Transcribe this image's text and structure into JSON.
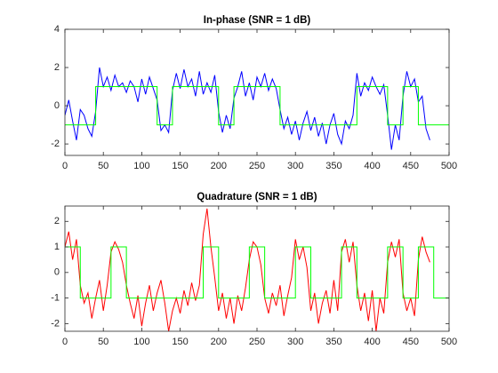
{
  "chart_data": [
    {
      "type": "line",
      "title": "In-phase (SNR = 1 dB)",
      "xlim": [
        0,
        500
      ],
      "xticks": [
        0,
        50,
        100,
        150,
        200,
        250,
        300,
        350,
        400,
        450,
        500
      ],
      "ylim": [
        -2.6,
        4
      ],
      "yticks": [
        -2,
        0,
        2,
        4
      ],
      "series": [
        {
          "color": "#0000ff",
          "x": [
            0,
            5,
            10,
            15,
            20,
            25,
            30,
            35,
            40,
            45,
            50,
            55,
            60,
            65,
            70,
            75,
            80,
            85,
            90,
            95,
            100,
            105,
            110,
            115,
            120,
            125,
            130,
            135,
            140,
            145,
            150,
            155,
            160,
            165,
            170,
            175,
            180,
            185,
            190,
            195,
            200,
            205,
            210,
            215,
            220,
            225,
            230,
            235,
            240,
            245,
            250,
            255,
            260,
            265,
            270,
            275,
            280,
            285,
            290,
            295,
            300,
            305,
            310,
            315,
            320,
            325,
            330,
            335,
            340,
            345,
            350,
            355,
            360,
            365,
            370,
            375,
            380,
            385,
            390,
            395,
            400,
            405,
            410,
            415,
            420,
            425,
            430,
            435,
            440,
            445,
            450,
            455,
            460,
            465,
            470,
            475
          ],
          "values": [
            -0.5,
            0.3,
            -0.8,
            -1.8,
            -0.2,
            -0.5,
            -1.2,
            -1.6,
            -0.3,
            2.0,
            1.0,
            1.5,
            0.8,
            1.6,
            1.0,
            1.2,
            0.7,
            1.3,
            1.0,
            0.2,
            1.4,
            0.6,
            1.5,
            0.9,
            0.3,
            -1.3,
            -1.0,
            -1.4,
            0.8,
            1.7,
            0.9,
            1.9,
            1.0,
            1.4,
            0.5,
            1.8,
            0.6,
            1.2,
            0.7,
            1.6,
            -0.3,
            -1.4,
            -0.5,
            -1.2,
            0.4,
            1.0,
            1.8,
            0.5,
            1.2,
            0.3,
            1.5,
            1.0,
            1.7,
            0.8,
            1.4,
            0.9,
            -0.2,
            -1.2,
            -0.6,
            -1.5,
            -0.8,
            -1.8,
            -0.9,
            -0.3,
            -1.3,
            -0.6,
            -1.6,
            -0.9,
            -2.0,
            -1.0,
            -0.4,
            -1.5,
            -2.0,
            -0.8,
            -1.2,
            -0.5,
            1.7,
            0.5,
            1.2,
            0.8,
            1.5,
            1.0,
            0.6,
            1.1,
            -0.5,
            -2.3,
            -1.0,
            -1.8,
            0.5,
            1.8,
            1.0,
            1.4,
            0.2,
            0.5,
            -1.2,
            -1.8
          ]
        },
        {
          "color": "#00ff00",
          "x": [
            0,
            40,
            40,
            120,
            120,
            140,
            140,
            200,
            200,
            220,
            220,
            280,
            280,
            380,
            380,
            420,
            420,
            440,
            440,
            460,
            460,
            500
          ],
          "values": [
            -1,
            -1,
            1,
            1,
            -1,
            -1,
            1,
            1,
            -1,
            -1,
            1,
            1,
            -1,
            -1,
            1,
            1,
            -1,
            -1,
            1,
            1,
            -1,
            -1
          ]
        }
      ]
    },
    {
      "type": "line",
      "title": "Quadrature (SNR = 1 dB)",
      "xlim": [
        0,
        500
      ],
      "xticks": [
        0,
        50,
        100,
        150,
        200,
        250,
        300,
        350,
        400,
        450,
        500
      ],
      "ylim": [
        -2.3,
        2.6
      ],
      "yticks": [
        -2,
        -1,
        0,
        1,
        2
      ],
      "series": [
        {
          "color": "#ff0000",
          "x": [
            0,
            5,
            10,
            15,
            20,
            25,
            30,
            35,
            40,
            45,
            50,
            55,
            60,
            65,
            70,
            75,
            80,
            85,
            90,
            95,
            100,
            105,
            110,
            115,
            120,
            125,
            130,
            135,
            140,
            145,
            150,
            155,
            160,
            165,
            170,
            175,
            180,
            185,
            190,
            195,
            200,
            205,
            210,
            215,
            220,
            225,
            230,
            235,
            240,
            245,
            250,
            255,
            260,
            265,
            270,
            275,
            280,
            285,
            290,
            295,
            300,
            305,
            310,
            315,
            320,
            325,
            330,
            335,
            340,
            345,
            350,
            355,
            360,
            365,
            370,
            375,
            380,
            385,
            390,
            395,
            400,
            405,
            410,
            415,
            420,
            425,
            430,
            435,
            440,
            445,
            450,
            455,
            460,
            465,
            470,
            475
          ],
          "values": [
            1.0,
            1.6,
            0.5,
            1.3,
            -0.5,
            -1.2,
            -0.8,
            -1.8,
            -1.0,
            -0.3,
            -1.5,
            -0.5,
            0.8,
            1.2,
            0.9,
            0.4,
            -0.5,
            -1.2,
            -1.8,
            -0.9,
            -2.1,
            -1.2,
            -0.5,
            -1.5,
            -0.8,
            -0.3,
            -1.2,
            -2.3,
            -1.5,
            -1.0,
            -1.6,
            -0.7,
            -1.3,
            -0.4,
            -1.1,
            -0.5,
            1.5,
            2.5,
            1.0,
            -0.2,
            -1.5,
            -0.8,
            -1.8,
            -1.0,
            -2.0,
            -0.9,
            -1.5,
            -0.6,
            0.5,
            1.2,
            1.0,
            0.3,
            -1.0,
            -1.6,
            -0.8,
            -1.3,
            -0.5,
            -1.7,
            -0.9,
            -0.2,
            1.3,
            0.5,
            1.0,
            0.2,
            -1.5,
            -0.8,
            -2.0,
            -1.2,
            -0.7,
            -1.6,
            -0.3,
            -1.5,
            0.8,
            1.3,
            0.4,
            1.2,
            -0.5,
            -1.5,
            -0.8,
            -1.9,
            -0.7,
            -2.3,
            -1.0,
            -1.6,
            0.4,
            1.2,
            0.6,
            1.3,
            -0.8,
            -1.5,
            -1.0,
            -1.7,
            0.5,
            1.4,
            0.8,
            0.4
          ]
        },
        {
          "color": "#00ff00",
          "x": [
            0,
            20,
            20,
            60,
            60,
            80,
            80,
            180,
            180,
            200,
            200,
            240,
            240,
            260,
            260,
            300,
            300,
            320,
            320,
            360,
            360,
            380,
            380,
            420,
            420,
            440,
            440,
            460,
            460,
            480,
            480,
            500
          ],
          "values": [
            1,
            1,
            -1,
            -1,
            1,
            1,
            -1,
            -1,
            1,
            1,
            -1,
            -1,
            1,
            1,
            -1,
            -1,
            1,
            1,
            -1,
            -1,
            1,
            1,
            -1,
            -1,
            1,
            1,
            -1,
            -1,
            1,
            1,
            -1,
            -1
          ]
        }
      ]
    }
  ]
}
